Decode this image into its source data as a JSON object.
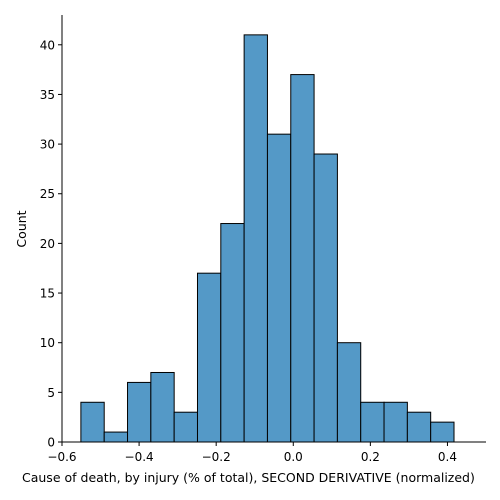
{
  "chart_data": {
    "type": "bar",
    "subtype": "histogram",
    "xlabel": "Cause of death, by injury (% of total), SECOND DERIVATIVE (normalized)",
    "ylabel": "Count",
    "xlim": [
      -0.6,
      0.5
    ],
    "ylim": [
      0,
      43
    ],
    "xticks": [
      -0.6,
      -0.4,
      -0.2,
      0.0,
      0.2,
      0.4
    ],
    "xtick_labels": [
      "−0.6",
      "−0.4",
      "−0.2",
      "0.0",
      "0.2",
      "0.4"
    ],
    "yticks": [
      0,
      5,
      10,
      15,
      20,
      25,
      30,
      35,
      40
    ],
    "ytick_labels": [
      "0",
      "5",
      "10",
      "15",
      "20",
      "25",
      "30",
      "35",
      "40"
    ],
    "bins": [
      {
        "x0": -0.551,
        "x1": -0.4905,
        "count": 4
      },
      {
        "x0": -0.4905,
        "x1": -0.43,
        "count": 1
      },
      {
        "x0": -0.43,
        "x1": -0.3695,
        "count": 6
      },
      {
        "x0": -0.3695,
        "x1": -0.309,
        "count": 7
      },
      {
        "x0": -0.309,
        "x1": -0.2485,
        "count": 3
      },
      {
        "x0": -0.2485,
        "x1": -0.188,
        "count": 17
      },
      {
        "x0": -0.188,
        "x1": -0.1275,
        "count": 22
      },
      {
        "x0": -0.1275,
        "x1": -0.067,
        "count": 41
      },
      {
        "x0": -0.067,
        "x1": -0.0065,
        "count": 31
      },
      {
        "x0": -0.0065,
        "x1": 0.054,
        "count": 37
      },
      {
        "x0": 0.054,
        "x1": 0.1145,
        "count": 29
      },
      {
        "x0": 0.1145,
        "x1": 0.175,
        "count": 10
      },
      {
        "x0": 0.175,
        "x1": 0.2355,
        "count": 4
      },
      {
        "x0": 0.2355,
        "x1": 0.296,
        "count": 4
      },
      {
        "x0": 0.296,
        "x1": 0.3565,
        "count": 3
      },
      {
        "x0": 0.3565,
        "x1": 0.417,
        "count": 2
      }
    ],
    "bar_color": "#5499c7",
    "edge_color": "#000000",
    "grid": false,
    "spines": [
      "left",
      "bottom"
    ]
  }
}
